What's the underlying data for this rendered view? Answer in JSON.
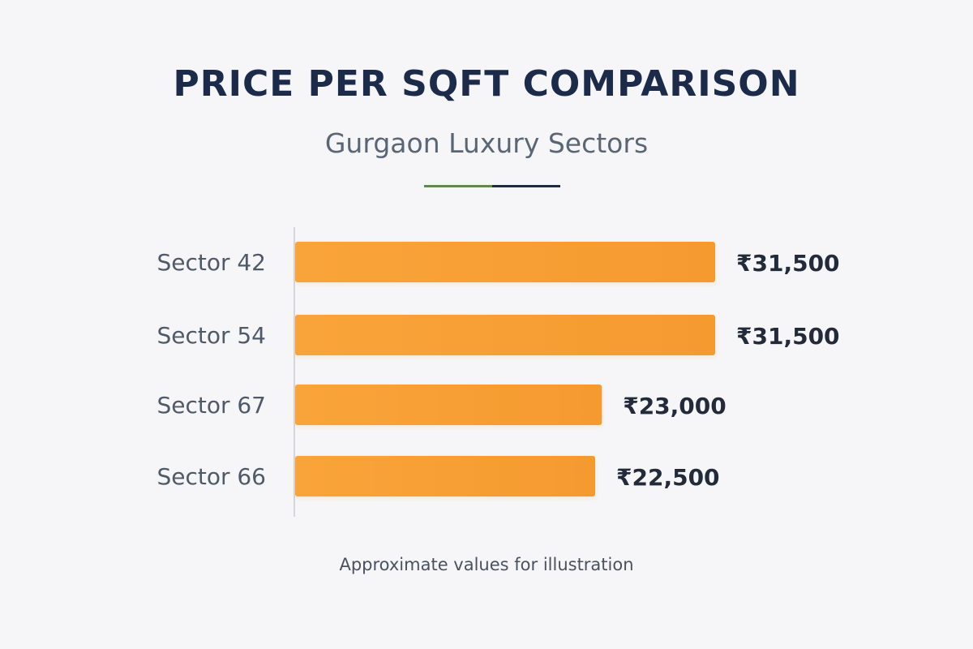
{
  "header": {
    "title": "PRICE PER SQFT COMPARISON",
    "subtitle": "Gurgaon Luxury Sectors"
  },
  "footnote": "Approximate values for illustration",
  "colors": {
    "bar": "#f9a43a",
    "bar_edge": "#f59a2f",
    "title": "#1c2b4a",
    "category_label": "#4f5a68",
    "value_label": "#232b3a",
    "axis": "#c9ccd2",
    "divider_left": "#5f8a4f",
    "divider_right": "#1c2b4a"
  },
  "chart_data": {
    "type": "bar",
    "orientation": "horizontal",
    "categories": [
      "Sector 42",
      "Sector 54",
      "Sector 67",
      "Sector 66"
    ],
    "values": [
      31500,
      31500,
      23000,
      22500
    ],
    "value_labels": [
      "₹31,500",
      "₹31,500",
      "₹23,000",
      "₹22,500"
    ],
    "title": "PRICE PER SQFT COMPARISON",
    "subtitle": "Gurgaon Luxury Sectors",
    "xlabel": "",
    "ylabel": "",
    "xlim": [
      0,
      31500
    ],
    "grid": false,
    "legend": "none"
  }
}
